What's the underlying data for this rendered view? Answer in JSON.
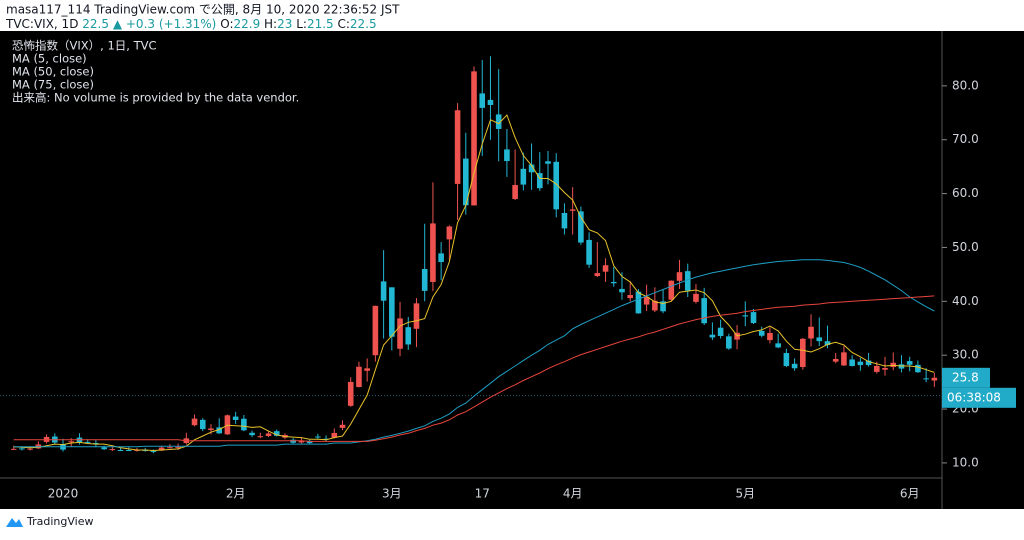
{
  "header": {
    "line1": "masa117_114 TradingView.com で公開, 8月 10, 2020 22:36:52 JST",
    "symbol": "TVC:VIX, 1D",
    "price": 22.5,
    "arrow": "▲",
    "change": "+0.3 (+1.31%)",
    "o_label": "O:",
    "o": 22.9,
    "h_label": "H:",
    "h": 23.0,
    "l_label": "L:",
    "l": 21.5,
    "c_label": "C:",
    "c": 22.5
  },
  "footer": {
    "brand": "TradingView"
  },
  "chart_data": {
    "type": "candlestick",
    "up_color": "#ef5350",
    "down_color": "#22b8d4",
    "ylim": [
      7.2,
      90
    ],
    "yticks": [
      {
        "value": 10,
        "label": "10.0"
      },
      {
        "value": 20,
        "label": "20.0"
      },
      {
        "value": 30,
        "label": "30.0"
      },
      {
        "value": 40,
        "label": "40.0"
      },
      {
        "value": 50,
        "label": "50.0"
      },
      {
        "value": 60,
        "label": "60.0"
      },
      {
        "value": 70,
        "label": "70.0"
      },
      {
        "value": 80,
        "label": "80.0"
      }
    ],
    "grid": false,
    "categories": [
      null,
      null,
      null,
      null,
      null,
      null,
      "2020",
      null,
      null,
      null,
      null,
      null,
      null,
      null,
      null,
      null,
      null,
      null,
      null,
      null,
      null,
      null,
      null,
      null,
      null,
      null,
      null,
      "2月",
      null,
      null,
      null,
      null,
      null,
      null,
      null,
      null,
      null,
      null,
      null,
      null,
      null,
      null,
      null,
      null,
      null,
      null,
      "3月",
      null,
      null,
      null,
      null,
      null,
      null,
      null,
      null,
      null,
      null,
      "17",
      null,
      null,
      null,
      null,
      null,
      null,
      null,
      null,
      null,
      null,
      "4月",
      null,
      null,
      null,
      null,
      null,
      null,
      null,
      null,
      null,
      null,
      null,
      null,
      null,
      null,
      null,
      null,
      null,
      null,
      null,
      null,
      "5月",
      null,
      null,
      null,
      null,
      null,
      null,
      null,
      null,
      null,
      null,
      null,
      null,
      null,
      null,
      null,
      null,
      null,
      null,
      null,
      "6月",
      null,
      null,
      null
    ],
    "candles": {
      "name": "恐怖指数（VIX）, 1日, TVC",
      "open": [
        12.5,
        12.7,
        12.6,
        12.7,
        13.9,
        14.9,
        13.5,
        13.9,
        14.7,
        13.9,
        13.7,
        12.9,
        12.5,
        12.4,
        12.4,
        12.3,
        12.4,
        12.2,
        12.3,
        12.9,
        12.9,
        13.7,
        17.0,
        18.0,
        16.1,
        16.6,
        15.3,
        18.6,
        18.2,
        15.6,
        14.9,
        15.0,
        15.9,
        14.7,
        14.3,
        13.8,
        14.1,
        14.9,
        14.5,
        14.7,
        16.5,
        20.6,
        24.1,
        27.1,
        30.0,
        43.7,
        42.6,
        31.2,
        35.2,
        34.9,
        46.0,
        43.6,
        48.9,
        51.5,
        61.8,
        66.5,
        57.8,
        78.6,
        77.4,
        74.7,
        68.2,
        59.0,
        64.6,
        65.4,
        63.8,
        66.0,
        65.9,
        56.4,
        56.8,
        56.7,
        51.4,
        44.7,
        45.5,
        43.6,
        42.3,
        40.6,
        41.8,
        39.4,
        38.3,
        40.0,
        40.3,
        43.8,
        45.6,
        39.9,
        40.6,
        33.8,
        35.1,
        33.5,
        32.9,
        37.4,
        38.0,
        34.5,
        32.8,
        32.2,
        30.4,
        28.4,
        27.8,
        33.1,
        33.3,
        32.6,
        28.8,
        28.1,
        29.2,
        28.8,
        29.0,
        26.9,
        27.3,
        27.8,
        28.3,
        28.9,
        28.2,
        25.7,
        25.3
      ],
      "high": [
        13.2,
        13.1,
        13.1,
        14.0,
        15.3,
        15.5,
        14.5,
        14.6,
        15.5,
        14.4,
        14.3,
        13.2,
        13.1,
        12.8,
        12.9,
        12.8,
        12.8,
        12.5,
        13.2,
        13.5,
        13.6,
        15.6,
        19.0,
        18.3,
        17.2,
        18.3,
        19.0,
        19.5,
        18.9,
        16.0,
        15.6,
        16.0,
        16.2,
        15.5,
        14.6,
        14.7,
        14.3,
        15.4,
        15.1,
        16.4,
        17.9,
        25.9,
        28.8,
        29.4,
        39.2,
        49.5,
        42.6,
        39.9,
        37.1,
        40.6,
        54.4,
        62.1,
        51.0,
        54.1,
        76.8,
        71.3,
        83.6,
        84.8,
        85.5,
        83.1,
        72.0,
        68.2,
        67.6,
        69.3,
        67.7,
        67.9,
        67.5,
        58.2,
        61.2,
        57.6,
        52.8,
        51.0,
        48.0,
        46.4,
        45.4,
        43.7,
        42.3,
        43.1,
        42.6,
        42.3,
        43.9,
        47.7,
        47.0,
        43.2,
        42.5,
        36.1,
        36.6,
        34.0,
        35.6,
        40.0,
        38.6,
        35.3,
        35.2,
        34.0,
        31.2,
        29.4,
        33.2,
        37.6,
        37.0,
        35.5,
        30.4,
        31.7,
        30.0,
        29.5,
        30.4,
        28.8,
        29.7,
        30.5,
        30.0,
        29.7,
        29.0,
        27.6,
        26.7
      ],
      "low": [
        12.4,
        12.3,
        12.3,
        12.6,
        13.6,
        13.4,
        12.1,
        13.0,
        13.4,
        13.6,
        12.9,
        12.4,
        12.2,
        12.2,
        12.2,
        12.1,
        12.1,
        11.8,
        12.2,
        12.7,
        12.4,
        13.4,
        16.8,
        15.9,
        15.3,
        15.4,
        15.2,
        17.2,
        15.9,
        14.8,
        14.6,
        14.8,
        14.9,
        14.4,
        13.6,
        13.6,
        13.4,
        14.4,
        14.0,
        14.6,
        16.1,
        20.4,
        24.0,
        25.1,
        28.8,
        33.1,
        30.9,
        29.8,
        31.0,
        31.5,
        40.0,
        41.9,
        43.9,
        47.7,
        55.1,
        56.1,
        57.8,
        67.0,
        70.0,
        66.0,
        63.1,
        58.8,
        60.6,
        60.7,
        60.5,
        61.7,
        55.6,
        52.4,
        52.4,
        50.5,
        46.2,
        44.5,
        43.6,
        42.7,
        40.3,
        40.0,
        37.7,
        38.2,
        38.0,
        37.8,
        40.0,
        42.3,
        40.8,
        39.6,
        35.6,
        32.8,
        33.1,
        31.0,
        31.1,
        35.4,
        35.8,
        33.3,
        32.2,
        31.3,
        27.8,
        27.1,
        27.3,
        31.6,
        31.7,
        31.3,
        28.5,
        28.0,
        27.9,
        27.1,
        27.9,
        26.6,
        26.2,
        27.2,
        26.8,
        27.0,
        26.7,
        25.0,
        24.1
      ],
      "close": [
        12.61,
        12.67,
        12.65,
        13.43,
        14.82,
        13.78,
        12.47,
        14.02,
        13.85,
        13.79,
        13.45,
        12.54,
        12.56,
        12.32,
        12.39,
        12.42,
        12.32,
        12.1,
        12.85,
        12.91,
        12.98,
        14.56,
        18.23,
        16.28,
        16.39,
        15.49,
        18.84,
        17.97,
        16.05,
        15.15,
        14.96,
        15.47,
        15.04,
        15.18,
        13.74,
        14.15,
        13.68,
        14.83,
        14.38,
        15.56,
        17.08,
        25.03,
        27.85,
        27.56,
        39.16,
        40.11,
        33.42,
        36.82,
        31.99,
        39.62,
        41.94,
        54.46,
        47.3,
        53.9,
        75.47,
        57.83,
        82.69,
        75.91,
        76.45,
        72.0,
        66.04,
        61.59,
        61.67,
        63.95,
        61.0,
        65.54,
        57.08,
        53.54,
        57.06,
        50.91,
        46.8,
        45.24,
        46.7,
        43.35,
        41.67,
        41.17,
        37.76,
        40.84,
        40.11,
        38.15,
        43.83,
        45.41,
        41.98,
        41.38,
        35.93,
        33.29,
        33.57,
        31.23,
        34.15,
        37.19,
        35.97,
        33.61,
        34.12,
        31.44,
        27.98,
        27.57,
        33.04,
        35.28,
        32.61,
        31.89,
        29.3,
        30.53,
        27.99,
        28.16,
        28.16,
        28.01,
        27.62,
        28.59,
        27.51,
        28.23,
        26.84,
        25.66,
        25.81
      ]
    },
    "overlays": [
      {
        "name": "MA (5, close)",
        "color": "#e8c22a",
        "values": [
          13.0,
          12.9,
          12.8,
          12.9,
          13.2,
          13.5,
          13.4,
          13.7,
          13.8,
          13.6,
          13.5,
          13.5,
          13.2,
          12.8,
          12.6,
          12.4,
          12.4,
          12.3,
          12.4,
          12.5,
          12.6,
          13.1,
          14.3,
          15.0,
          15.7,
          16.2,
          17.0,
          16.9,
          16.8,
          16.6,
          16.7,
          15.9,
          15.2,
          14.9,
          14.8,
          14.7,
          14.4,
          14.4,
          14.3,
          14.7,
          15.0,
          17.2,
          19.9,
          22.6,
          27.3,
          31.9,
          33.6,
          35.4,
          36.1,
          36.4,
          36.8,
          40.8,
          43.1,
          47.4,
          54.6,
          57.8,
          63.8,
          69.2,
          73.7,
          73.0,
          74.6,
          70.4,
          67.1,
          65.2,
          62.8,
          62.8,
          61.8,
          60.2,
          58.8,
          55.6,
          53.3,
          52.7,
          51.3,
          46.6,
          44.6,
          43.6,
          41.6,
          40.9,
          39.9,
          39.6,
          40.0,
          41.7,
          41.9,
          42.1,
          41.6,
          40.1,
          37.2,
          35.6,
          33.6,
          33.9,
          34.4,
          34.7,
          35.4,
          34.5,
          32.6,
          31.1,
          30.9,
          30.6,
          31.2,
          32.0,
          32.4,
          31.9,
          30.5,
          29.7,
          28.8,
          28.4,
          28.0,
          28.1,
          28.0,
          28.0,
          27.8,
          27.3,
          26.8
        ]
      },
      {
        "name": "MA (50, close)",
        "color": "#1f9ec4",
        "values": [
          13.0,
          13.0,
          13.0,
          13.0,
          13.0,
          13.0,
          13.0,
          13.0,
          13.0,
          13.0,
          13.0,
          13.0,
          13.0,
          13.0,
          13.0,
          13.0,
          13.1,
          13.1,
          13.1,
          13.1,
          13.1,
          13.1,
          13.1,
          13.1,
          13.1,
          13.1,
          13.3,
          13.3,
          13.3,
          13.3,
          13.3,
          13.3,
          13.3,
          13.5,
          13.5,
          13.5,
          13.5,
          13.5,
          13.5,
          13.7,
          13.7,
          13.7,
          13.9,
          14.1,
          14.4,
          14.8,
          15.1,
          15.5,
          15.9,
          16.4,
          16.9,
          17.7,
          18.3,
          19.1,
          20.3,
          21.1,
          22.4,
          23.6,
          24.8,
          26.0,
          27.0,
          28.0,
          29.0,
          30.0,
          30.9,
          32.0,
          32.8,
          33.6,
          34.9,
          35.7,
          36.4,
          37.1,
          37.8,
          38.5,
          39.2,
          39.8,
          40.4,
          41.0,
          41.6,
          42.2,
          42.8,
          43.4,
          44.0,
          44.5,
          44.9,
          45.3,
          45.6,
          45.9,
          46.2,
          46.5,
          46.8,
          47.0,
          47.2,
          47.4,
          47.5,
          47.6,
          47.7,
          47.7,
          47.7,
          47.6,
          47.4,
          47.2,
          46.8,
          46.3,
          45.6,
          44.8,
          44.0,
          43.0,
          42.0,
          40.8,
          39.9,
          39.0,
          38.2
        ]
      },
      {
        "name": "MA (75, close)",
        "color": "#e8453c",
        "values": [
          14.3,
          14.3,
          14.3,
          14.3,
          14.3,
          14.3,
          14.3,
          14.3,
          14.3,
          14.3,
          14.3,
          14.3,
          14.3,
          14.3,
          14.3,
          14.3,
          14.3,
          14.3,
          14.3,
          14.3,
          14.3,
          14.1,
          14.1,
          14.1,
          14.1,
          14.1,
          14.1,
          14.1,
          14.1,
          14.1,
          14.1,
          14.1,
          14.1,
          14.1,
          14.1,
          14.1,
          14.0,
          14.0,
          14.0,
          14.0,
          14.0,
          14.0,
          14.0,
          14.0,
          14.2,
          14.5,
          14.8,
          15.2,
          15.5,
          16.0,
          16.4,
          17.0,
          17.4,
          18.0,
          18.9,
          19.5,
          20.4,
          21.3,
          22.2,
          23.0,
          23.8,
          24.5,
          25.3,
          26.0,
          26.7,
          27.5,
          28.2,
          28.8,
          29.5,
          30.1,
          30.6,
          31.1,
          31.6,
          32.1,
          32.6,
          33.0,
          33.4,
          33.9,
          34.3,
          34.8,
          35.3,
          35.8,
          36.2,
          36.6,
          36.9,
          37.2,
          37.4,
          37.6,
          37.8,
          38.1,
          38.3,
          38.5,
          38.7,
          38.9,
          39.0,
          39.1,
          39.3,
          39.4,
          39.5,
          39.7,
          39.8,
          39.9,
          40.0,
          40.1,
          40.2,
          40.3,
          40.4,
          40.5,
          40.6,
          40.7,
          40.8,
          40.9,
          41.0
        ]
      }
    ],
    "volume_note": "出来高: No volume is provided by the data vendor.",
    "last_price": 25.8,
    "countdown": "06:38:08",
    "price_line": 22.5
  }
}
